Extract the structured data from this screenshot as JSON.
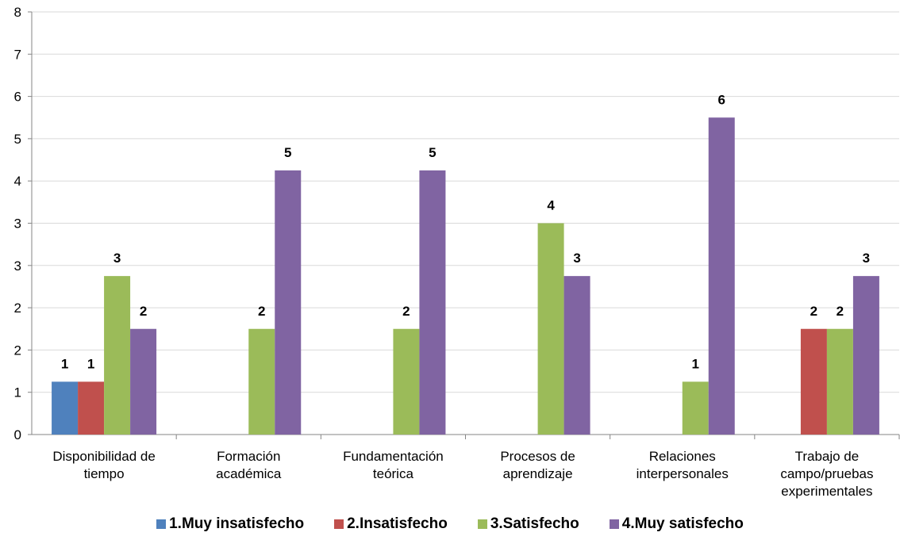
{
  "chart_data": {
    "type": "bar",
    "categories": [
      [
        "Disponibilidad de",
        "tiempo"
      ],
      [
        "Formación",
        "académica"
      ],
      [
        "Fundamentación",
        "teórica"
      ],
      [
        "Procesos de",
        "aprendizaje"
      ],
      [
        "Relaciones",
        "interpersonales"
      ],
      [
        "Trabajo de",
        "campo/pruebas",
        "experimentales"
      ]
    ],
    "series": [
      {
        "name": "1.Muy insatisfecho",
        "color": "#4F81BD",
        "values": [
          1,
          0,
          0,
          0,
          0,
          0
        ]
      },
      {
        "name": "2.Insatisfecho",
        "color": "#C0504D",
        "values": [
          1,
          0,
          0,
          0,
          0,
          2
        ]
      },
      {
        "name": "3.Satisfecho",
        "color": "#9BBB59",
        "values": [
          3,
          2,
          2,
          4,
          1,
          2
        ]
      },
      {
        "name": "4.Muy satisfecho",
        "color": "#8064A2",
        "values": [
          2,
          5,
          5,
          3,
          6,
          3
        ]
      }
    ],
    "y_ticks": [
      "0",
      "1",
      "2",
      "2",
      "3",
      "3",
      "4",
      "5",
      "6",
      "7",
      "8"
    ],
    "ylim": [
      0,
      8
    ],
    "grid": true,
    "legend_position": "bottom"
  }
}
